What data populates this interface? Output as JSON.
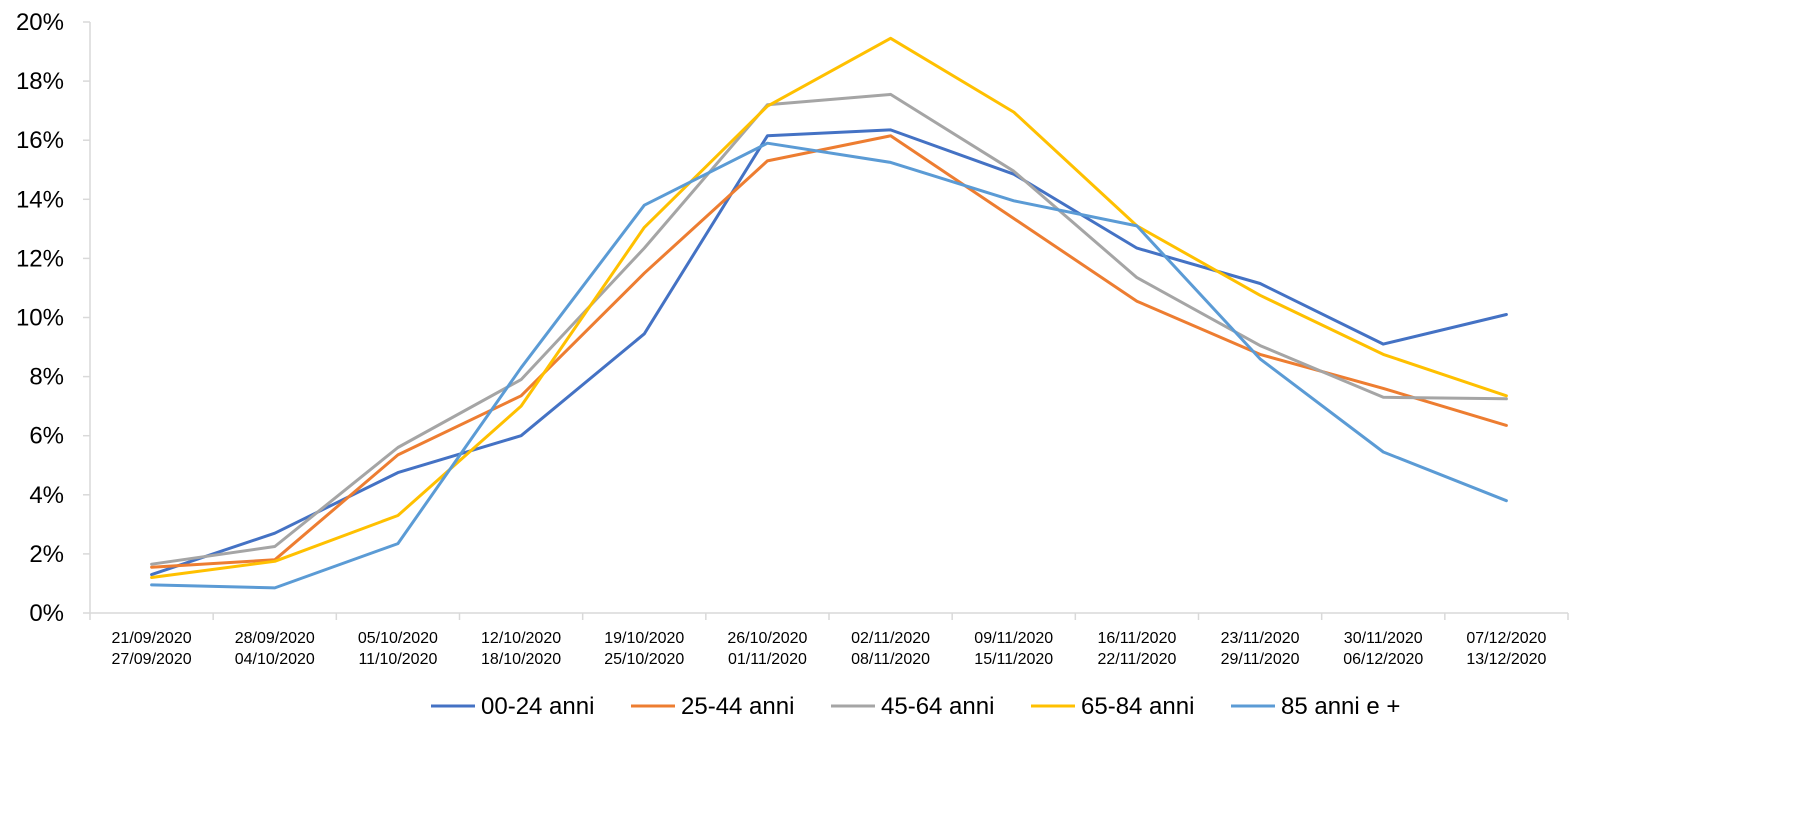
{
  "chart_data": {
    "type": "line",
    "title": "",
    "xlabel": "",
    "ylabel": "",
    "ylim": [
      0,
      20
    ],
    "y_unit": "%",
    "y_ticks": [
      "0%",
      "2%",
      "4%",
      "6%",
      "8%",
      "10%",
      "12%",
      "14%",
      "16%",
      "18%",
      "20%"
    ],
    "grid": false,
    "legend_position": "bottom",
    "categories": [
      [
        "21/09/2020",
        "27/09/2020"
      ],
      [
        "28/09/2020",
        "04/10/2020"
      ],
      [
        "05/10/2020",
        "11/10/2020"
      ],
      [
        "12/10/2020",
        "18/10/2020"
      ],
      [
        "19/10/2020",
        "25/10/2020"
      ],
      [
        "26/10/2020",
        "01/11/2020"
      ],
      [
        "02/11/2020",
        "08/11/2020"
      ],
      [
        "09/11/2020",
        "15/11/2020"
      ],
      [
        "16/11/2020",
        "22/11/2020"
      ],
      [
        "23/11/2020",
        "29/11/2020"
      ],
      [
        "30/11/2020",
        "06/12/2020"
      ],
      [
        "07/12/2020",
        "13/12/2020"
      ]
    ],
    "series": [
      {
        "name": "00-24 anni",
        "color": "#4472C4",
        "values": [
          1.3,
          2.7,
          4.75,
          6.0,
          9.45,
          16.15,
          16.35,
          14.85,
          12.35,
          11.15,
          9.1,
          10.1
        ]
      },
      {
        "name": "25-44 anni",
        "color": "#ED7D31",
        "values": [
          1.55,
          1.8,
          5.35,
          7.35,
          11.5,
          15.3,
          16.15,
          13.35,
          10.55,
          8.75,
          7.6,
          6.35
        ]
      },
      {
        "name": "45-64 anni",
        "color": "#A5A5A5",
        "values": [
          1.65,
          2.25,
          5.6,
          7.9,
          12.35,
          17.2,
          17.55,
          14.95,
          11.35,
          9.05,
          7.3,
          7.25
        ]
      },
      {
        "name": "65-84 anni",
        "color": "#FFC000",
        "values": [
          1.2,
          1.75,
          3.3,
          7.0,
          13.05,
          17.15,
          19.45,
          16.95,
          13.1,
          10.75,
          8.75,
          7.35
        ]
      },
      {
        "name": "85 anni e +",
        "color": "#5B9BD5",
        "values": [
          0.95,
          0.85,
          2.35,
          8.3,
          13.8,
          15.9,
          15.25,
          13.95,
          13.1,
          8.6,
          5.45,
          3.8
        ]
      }
    ]
  }
}
